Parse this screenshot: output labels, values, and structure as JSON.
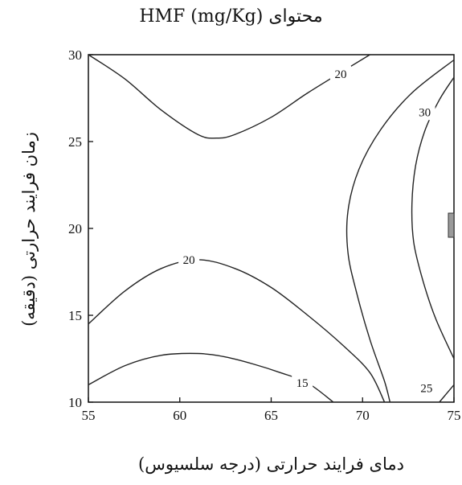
{
  "chart_data": {
    "type": "contour",
    "title": "محتوای HMF (mg/Kg)",
    "xlabel": "دمای فرایند حرارتی (درجه سلسیوس)",
    "ylabel": "زمان فرایند حرارتی (دقیقه)",
    "xlim": [
      55,
      75
    ],
    "ylim": [
      10,
      30
    ],
    "xticks": [
      "55",
      "60",
      "65",
      "70",
      "75"
    ],
    "yticks": [
      "10",
      "15",
      "20",
      "25",
      "30"
    ],
    "grid": false,
    "contours": [
      {
        "level": "20",
        "label_at": [
          68.8,
          28.9
        ],
        "points": [
          [
            55,
            30
          ],
          [
            57,
            28.6
          ],
          [
            59,
            26.8
          ],
          [
            61,
            25.4
          ],
          [
            62,
            25.2
          ],
          [
            63,
            25.4
          ],
          [
            65,
            26.4
          ],
          [
            67,
            27.8
          ],
          [
            69,
            29.1
          ],
          [
            70.4,
            30
          ]
        ]
      },
      {
        "level": "30",
        "label_at": [
          73.4,
          26.7
        ],
        "points": [
          [
            75,
            28.7
          ],
          [
            74.2,
            27.4
          ],
          [
            73.4,
            25.6
          ],
          [
            72.9,
            23.6
          ],
          [
            72.7,
            21.4
          ],
          [
            72.8,
            19.2
          ],
          [
            73.3,
            17
          ],
          [
            74,
            14.8
          ],
          [
            75,
            12.5
          ]
        ]
      },
      {
        "level": "",
        "label_at": null,
        "points": [
          [
            75,
            29.7
          ],
          [
            72.7,
            27.8
          ],
          [
            71,
            25.7
          ],
          [
            69.8,
            23.4
          ],
          [
            69.2,
            21
          ],
          [
            69.2,
            18.6
          ],
          [
            69.7,
            16.2
          ],
          [
            70.4,
            13.6
          ],
          [
            71.2,
            11.2
          ],
          [
            71.5,
            10
          ]
        ]
      },
      {
        "level": "20",
        "label_at": [
          60.5,
          18.2
        ],
        "points": [
          [
            55,
            14.5
          ],
          [
            57,
            16.4
          ],
          [
            59,
            17.7
          ],
          [
            61,
            18.2
          ],
          [
            63,
            17.7
          ],
          [
            65,
            16.6
          ],
          [
            67,
            15
          ],
          [
            69,
            13.2
          ],
          [
            70.4,
            11.7
          ],
          [
            71.2,
            10
          ]
        ]
      },
      {
        "level": "15",
        "label_at": [
          66.7,
          11.1
        ],
        "points": [
          [
            55,
            11
          ],
          [
            57,
            12.1
          ],
          [
            59,
            12.7
          ],
          [
            61,
            12.8
          ],
          [
            62.5,
            12.6
          ],
          [
            64,
            12.2
          ],
          [
            65.5,
            11.7
          ],
          [
            67,
            11.1
          ],
          [
            68.4,
            10
          ]
        ]
      },
      {
        "level": "25",
        "label_at": [
          73.5,
          10.8
        ],
        "points": [
          [
            74.2,
            10
          ],
          [
            74.6,
            10.5
          ],
          [
            75,
            11
          ]
        ]
      }
    ]
  }
}
